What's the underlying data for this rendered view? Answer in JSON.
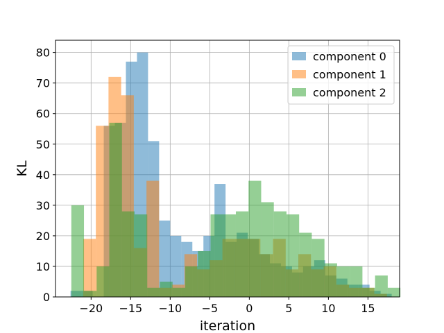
{
  "chart_data": {
    "type": "bar",
    "subtype": "overlapping-histogram",
    "xlabel": "iteration",
    "ylabel": "KL",
    "xlim": [
      -24.5,
      19.0
    ],
    "ylim": [
      0,
      84
    ],
    "xticks": [
      -20,
      -15,
      -10,
      -5,
      0,
      5,
      10,
      15
    ],
    "xtick_labels": [
      "−20",
      "−15",
      "−10",
      "−5",
      "0",
      "5",
      "10",
      "15"
    ],
    "yticks": [
      0,
      10,
      20,
      30,
      40,
      50,
      60,
      70,
      80
    ],
    "grid": true,
    "legend_position": "top-right",
    "bar_alpha": 0.5,
    "series": [
      {
        "name": "component 0",
        "color": "#1f77b4",
        "bin_start": -22.6,
        "bin_width": 1.4,
        "counts": [
          2,
          2,
          0,
          56,
          57,
          77,
          80,
          51,
          25,
          20,
          18,
          15,
          20,
          37,
          18,
          21,
          19,
          14,
          11,
          10,
          8,
          10,
          12,
          7,
          6,
          4,
          4,
          2,
          1
        ]
      },
      {
        "name": "component 1",
        "color": "#ff7f0e",
        "bin_start": -21.0,
        "bin_width": 1.6,
        "counts": [
          19,
          56,
          72,
          66,
          16,
          38,
          3,
          4,
          14,
          9,
          12,
          19,
          19,
          19,
          14,
          19,
          9,
          14,
          9,
          10,
          4,
          3,
          3,
          1
        ]
      },
      {
        "name": "component 2",
        "color": "#2ca02c",
        "bin_start": -22.5,
        "bin_width": 1.6,
        "counts": [
          30,
          2,
          10,
          57,
          28,
          27,
          3,
          5,
          3,
          10,
          15,
          27,
          27,
          28,
          38,
          31,
          28,
          27,
          21,
          19,
          11,
          10,
          10,
          3,
          7,
          3
        ]
      }
    ]
  }
}
